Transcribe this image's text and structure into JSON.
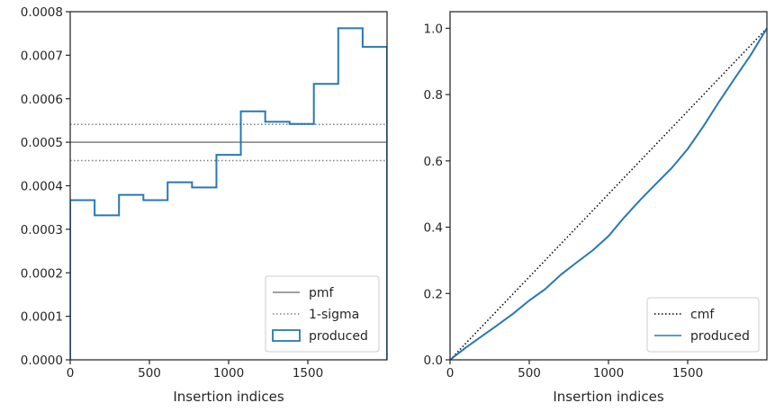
{
  "chart_data": [
    {
      "type": "step",
      "xlabel": "Insertion indices",
      "ylabel": "",
      "xlim": [
        0,
        2000
      ],
      "ylim": [
        0,
        0.0008
      ],
      "xticks": [
        0,
        500,
        1000,
        1500
      ],
      "yticks": [
        0,
        0.0001,
        0.0002,
        0.0003,
        0.0004,
        0.0005,
        0.0006,
        0.0007,
        0.0008
      ],
      "ytick_labels": [
        "0.0000",
        "0.0001",
        "0.0002",
        "0.0003",
        "0.0004",
        "0.0005",
        "0.0006",
        "0.0007",
        "0.0008"
      ],
      "legend_position": "lower-right",
      "hlines": [
        {
          "name": "pmf",
          "y": 0.0005,
          "style": "solid",
          "color": "#808080"
        },
        {
          "name": "1-sigma",
          "y": 0.000541,
          "style": "dotted",
          "color": "#808080",
          "legend": true
        },
        {
          "name": "1-sigma",
          "y": 0.000458,
          "style": "dotted",
          "color": "#808080",
          "legend": false
        }
      ],
      "series": [
        {
          "name": "produced",
          "color": "#2878b5",
          "bin_edges": [
            0,
            154,
            308,
            462,
            615,
            769,
            923,
            1077,
            1231,
            1385,
            1538,
            1692,
            1846,
            2000
          ],
          "values": [
            0.000367,
            0.000332,
            0.000379,
            0.000367,
            0.000408,
            0.000396,
            0.000471,
            0.000571,
            0.000547,
            0.000542,
            0.000634,
            0.000762,
            0.000719
          ]
        }
      ]
    },
    {
      "type": "line",
      "xlabel": "Insertion indices",
      "ylabel": "",
      "xlim": [
        0,
        2000
      ],
      "ylim": [
        0,
        1.05
      ],
      "xticks": [
        0,
        500,
        1000,
        1500
      ],
      "yticks": [
        0,
        0.2,
        0.4,
        0.6,
        0.8,
        1.0
      ],
      "ytick_labels": [
        "0.0",
        "0.2",
        "0.4",
        "0.6",
        "0.8",
        "1.0"
      ],
      "legend_position": "lower-right",
      "series": [
        {
          "name": "cmf",
          "style": "dotted",
          "color": "#000000",
          "x": [
            0,
            2000
          ],
          "y": [
            0,
            1.0
          ]
        },
        {
          "name": "produced",
          "style": "solid",
          "color": "#2878b5",
          "x": [
            0,
            100,
            200,
            300,
            400,
            500,
            600,
            700,
            800,
            900,
            1000,
            1100,
            1200,
            1300,
            1400,
            1500,
            1600,
            1700,
            1800,
            1900,
            2000
          ],
          "y": [
            0,
            0.037,
            0.071,
            0.105,
            0.14,
            0.179,
            0.213,
            0.257,
            0.294,
            0.33,
            0.373,
            0.43,
            0.482,
            0.531,
            0.579,
            0.636,
            0.705,
            0.78,
            0.851,
            0.921,
            1.0
          ]
        }
      ]
    }
  ]
}
